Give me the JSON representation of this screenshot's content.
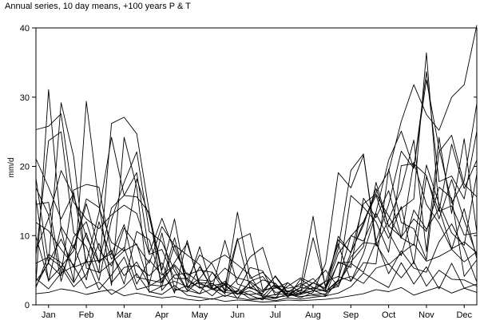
{
  "chart_data": {
    "type": "line",
    "title": "Annual series, 10 day means, +100 years P & T",
    "xlabel": "",
    "ylabel": "mm/d",
    "ylim": [
      0,
      40
    ],
    "y_ticks": [
      0,
      10,
      20,
      30,
      40
    ],
    "x_range": [
      1,
      36
    ],
    "x_ticks": [
      {
        "label": "Jan",
        "x": 2
      },
      {
        "label": "Feb",
        "x": 5
      },
      {
        "label": "Mar",
        "x": 8
      },
      {
        "label": "Apr",
        "x": 11
      },
      {
        "label": "May",
        "x": 14
      },
      {
        "label": "Jun",
        "x": 17
      },
      {
        "label": "Jul",
        "x": 20
      },
      {
        "label": "Aug",
        "x": 23
      },
      {
        "label": "Sep",
        "x": 26
      },
      {
        "label": "Oct",
        "x": 29
      },
      {
        "label": "Nov",
        "x": 32
      },
      {
        "label": "Dec",
        "x": 35
      }
    ],
    "grid": false,
    "legend": "none",
    "line_color": "#000000",
    "series": [
      {
        "values": [
          25.3,
          25.8,
          27.6,
          14.8,
          12.4,
          11.0,
          13.0,
          14.4,
          13.2,
          7.3,
          8.0,
          3.8,
          3.8,
          2.4,
          3.1,
          1.8,
          1.6,
          2.0,
          1.2,
          1.1,
          1.3,
          1.5,
          3.2,
          2.2,
          7.4,
          9.9,
          12.0,
          16.2,
          19.3,
          26.5,
          31.8,
          27.5,
          25.2,
          30.0,
          31.8,
          40.4
        ]
      },
      {
        "values": [
          3.1,
          31.1,
          10.9,
          3.4,
          29.4,
          14.7,
          2.8,
          24.2,
          17.0,
          1.8,
          2.7,
          8.6,
          3.5,
          2.5,
          2.8,
          3.1,
          0.9,
          3.4,
          2.0,
          4.1,
          1.6,
          1.0,
          1.8,
          6.0,
          19.1,
          16.9,
          21.6,
          9.2,
          14.5,
          22.2,
          19.7,
          32.5,
          22.6,
          14.7,
          17.9,
          29.1
        ]
      },
      {
        "values": [
          18.3,
          5.9,
          29.2,
          21.4,
          5.3,
          4.7,
          26.2,
          27.1,
          24.7,
          13.4,
          2.1,
          4.3,
          4.6,
          3.2,
          3.1,
          1.6,
          9.4,
          10.3,
          2.2,
          2.4,
          3.2,
          1.7,
          2.5,
          1.9,
          3.6,
          10.0,
          9.2,
          13.4,
          20.9,
          25.1,
          19.7,
          33.7,
          17.8,
          18.6,
          15.3,
          25.1
        ]
      },
      {
        "values": [
          7.1,
          23.7,
          25.0,
          10.4,
          8.4,
          3.5,
          12.3,
          17.7,
          22.1,
          10.6,
          9.1,
          4.9,
          2.1,
          5.5,
          2.3,
          2.9,
          9.6,
          2.4,
          1.9,
          2.8,
          1.5,
          2.5,
          12.8,
          2.3,
          6.0,
          6.2,
          8.4,
          17.7,
          11.3,
          13.9,
          15.3,
          36.4,
          13.5,
          23.2,
          16.8,
          20.9
        ]
      },
      {
        "values": [
          21.1,
          17.0,
          12.4,
          16.2,
          6.1,
          13.3,
          24.2,
          15.8,
          19.1,
          7.5,
          12.5,
          7.8,
          4.3,
          5.0,
          4.7,
          2.0,
          13.4,
          3.8,
          4.7,
          2.8,
          2.4,
          2.7,
          3.8,
          1.9,
          3.4,
          15.8,
          14.1,
          12.0,
          7.6,
          20.1,
          20.4,
          18.7,
          12.4,
          18.1,
          12.2,
          7.1
        ]
      },
      {
        "values": [
          15.3,
          3.4,
          11.3,
          8.2,
          15.3,
          14.1,
          9.0,
          7.8,
          18.2,
          12.7,
          4.6,
          2.0,
          2.8,
          8.4,
          2.3,
          1.9,
          3.7,
          6.9,
          8.3,
          2.5,
          1.9,
          1.6,
          9.7,
          2.7,
          8.1,
          19.4,
          21.8,
          8.5,
          12.3,
          16.7,
          23.8,
          7.7,
          24.2,
          13.2,
          24.0,
          10.5
        ]
      },
      {
        "values": [
          14.5,
          14.8,
          4.5,
          16.6,
          17.4,
          17.0,
          7.3,
          11.6,
          4.0,
          3.6,
          3.2,
          6.1,
          8.9,
          3.0,
          2.4,
          9.3,
          3.0,
          2.4,
          3.6,
          3.1,
          1.1,
          3.7,
          2.5,
          2.0,
          2.7,
          7.5,
          11.9,
          15.8,
          10.5,
          7.1,
          13.7,
          10.9,
          13.9,
          8.1,
          9.1,
          7.5
        ]
      },
      {
        "values": [
          7.9,
          12.5,
          19.4,
          15.7,
          9.8,
          6.1,
          14.0,
          15.8,
          15.6,
          13.3,
          5.0,
          12.4,
          2.5,
          3.2,
          2.2,
          2.9,
          1.5,
          2.6,
          1.5,
          0.9,
          3.2,
          1.7,
          2.0,
          3.4,
          4.1,
          3.4,
          6.1,
          5.9,
          19.6,
          11.9,
          11.0,
          6.5,
          22.1,
          24.5,
          17.4,
          15.6
        ]
      },
      {
        "values": [
          6.0,
          6.9,
          5.5,
          7.8,
          14.6,
          8.0,
          5.6,
          11.1,
          8.6,
          6.0,
          11.3,
          8.6,
          7.2,
          5.8,
          2.2,
          3.4,
          1.6,
          1.5,
          1.7,
          4.2,
          1.8,
          3.1,
          2.1,
          1.4,
          6.2,
          5.4,
          15.4,
          12.6,
          16.5,
          9.7,
          8.6,
          20.2,
          14.6,
          10.4,
          8.6,
          18.9
        ]
      },
      {
        "values": [
          16.9,
          13.0,
          3.4,
          9.8,
          12.0,
          6.1,
          7.9,
          3.0,
          10.6,
          9.4,
          3.2,
          9.7,
          2.7,
          1.6,
          4.7,
          2.8,
          1.5,
          3.2,
          1.1,
          1.5,
          1.6,
          1.5,
          2.0,
          2.1,
          9.9,
          7.5,
          14.6,
          16.0,
          12.8,
          9.6,
          20.6,
          14.5,
          11.8,
          8.0,
          13.9,
          6.6
        ]
      },
      {
        "values": [
          11.9,
          10.7,
          8.0,
          5.7,
          10.4,
          4.6,
          6.1,
          7.8,
          8.8,
          3.0,
          10.4,
          2.3,
          1.9,
          3.6,
          3.4,
          5.3,
          3.9,
          3.4,
          4.1,
          1.8,
          2.0,
          2.1,
          3.2,
          2.4,
          9.4,
          7.6,
          11.5,
          16.8,
          11.4,
          9.8,
          12.4,
          10.6,
          17.0,
          15.4,
          4.1,
          6.5
        ]
      },
      {
        "values": [
          2.7,
          6.2,
          9.5,
          5.4,
          6.2,
          6.4,
          7.4,
          4.2,
          6.2,
          2.9,
          2.7,
          3.4,
          2.6,
          3.8,
          6.2,
          7.2,
          5.8,
          4.3,
          1.2,
          3.1,
          1.3,
          2.5,
          2.3,
          3.4,
          8.8,
          3.4,
          7.4,
          13.2,
          9.6,
          14.2,
          5.9,
          18.5,
          13.5,
          14.3,
          10.1,
          10.4
        ]
      },
      {
        "values": [
          3.4,
          6.0,
          4.2,
          8.7,
          3.6,
          12.0,
          6.6,
          8.3,
          3.0,
          6.5,
          4.3,
          5.8,
          3.7,
          7.2,
          5.9,
          2.1,
          1.9,
          5.4,
          4.9,
          1.4,
          2.7,
          3.9,
          3.1,
          5.0,
          2.6,
          6.9,
          9.0,
          8.8,
          5.8,
          7.4,
          8.8,
          6.3,
          7.0,
          8.0,
          6.2,
          7.7
        ]
      },
      {
        "values": [
          9.9,
          3.5,
          5.5,
          2.6,
          4.4,
          8.9,
          3.2,
          5.4,
          5.7,
          4.2,
          6.1,
          1.7,
          9.3,
          2.6,
          1.3,
          3.1,
          2.3,
          1.4,
          0.7,
          2.7,
          1.2,
          2.1,
          1.5,
          1.6,
          3.1,
          6.0,
          4.7,
          9.2,
          4.5,
          7.8,
          5.3,
          4.7,
          9.1,
          11.7,
          8.1,
          3.3
        ]
      },
      {
        "values": [
          2.5,
          7.3,
          6.1,
          3.2,
          6.5,
          2.2,
          4.3,
          6.9,
          2.2,
          2.7,
          3.8,
          5.6,
          2.1,
          1.6,
          2.3,
          1.2,
          2.1,
          0.9,
          1.0,
          0.9,
          1.6,
          1.2,
          1.4,
          1.2,
          3.5,
          4.1,
          3.1,
          5.3,
          5.9,
          3.9,
          6.2,
          2.7,
          5.0,
          3.7,
          3.6,
          2.7
        ]
      },
      {
        "values": [
          3.8,
          2.3,
          4.6,
          5.6,
          2.4,
          3.3,
          1.5,
          2.6,
          4.5,
          1.9,
          1.5,
          2.8,
          1.4,
          1.1,
          0.8,
          1.4,
          1.0,
          0.7,
          0.9,
          0.6,
          1.0,
          0.8,
          1.1,
          1.3,
          1.7,
          2.6,
          4.6,
          3.5,
          2.5,
          6.1,
          3.0,
          5.5,
          2.3,
          6.0,
          2.4,
          3.0
        ]
      },
      {
        "values": [
          1.6,
          1.8,
          2.3,
          2.0,
          1.5,
          1.9,
          2.2,
          1.3,
          1.7,
          1.3,
          1.0,
          1.2,
          0.8,
          0.6,
          0.9,
          0.5,
          0.7,
          0.6,
          0.4,
          0.5,
          0.7,
          0.6,
          0.7,
          0.8,
          1.0,
          1.3,
          1.6,
          2.2,
          1.9,
          2.5,
          1.4,
          2.0,
          2.6,
          1.7,
          2.4,
          1.8
        ]
      }
    ]
  }
}
